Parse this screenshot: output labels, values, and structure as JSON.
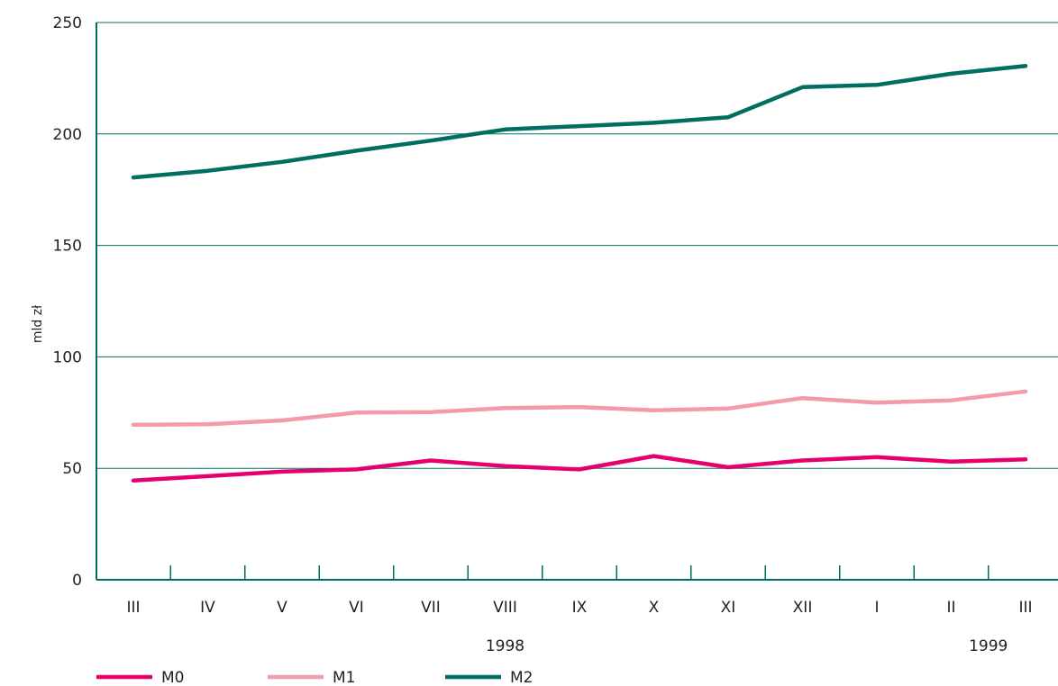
{
  "chart_data": {
    "type": "line",
    "ylabel": "mld zł",
    "ylim": [
      0,
      250
    ],
    "yticks": [
      0,
      50,
      100,
      150,
      200,
      250
    ],
    "categories": [
      "III",
      "IV",
      "V",
      "VI",
      "VII",
      "VIII",
      "IX",
      "X",
      "XI",
      "XII",
      "I",
      "II",
      "III"
    ],
    "year_labels": [
      {
        "text": "1998",
        "at_index": 5
      },
      {
        "text": "1999",
        "at_index": 11.5
      }
    ],
    "grid": "horizontal",
    "legend_position": "bottom",
    "series": [
      {
        "name": "M0",
        "color": "#e5006d",
        "values": [
          44.5,
          46.5,
          48.5,
          49.5,
          53.5,
          51,
          49.5,
          55.5,
          50.5,
          53.5,
          55,
          53,
          54
        ]
      },
      {
        "name": "M1",
        "color": "#f29bab",
        "values": [
          69.5,
          69.8,
          71.5,
          75,
          75.2,
          77,
          77.5,
          76,
          76.8,
          81.5,
          79.5,
          80.5,
          84.5
        ]
      },
      {
        "name": "M2",
        "color": "#006f62",
        "values": [
          180.5,
          183.5,
          187.5,
          192.5,
          197,
          202,
          203.5,
          205,
          207.5,
          221,
          222,
          227,
          230.5
        ]
      }
    ]
  }
}
